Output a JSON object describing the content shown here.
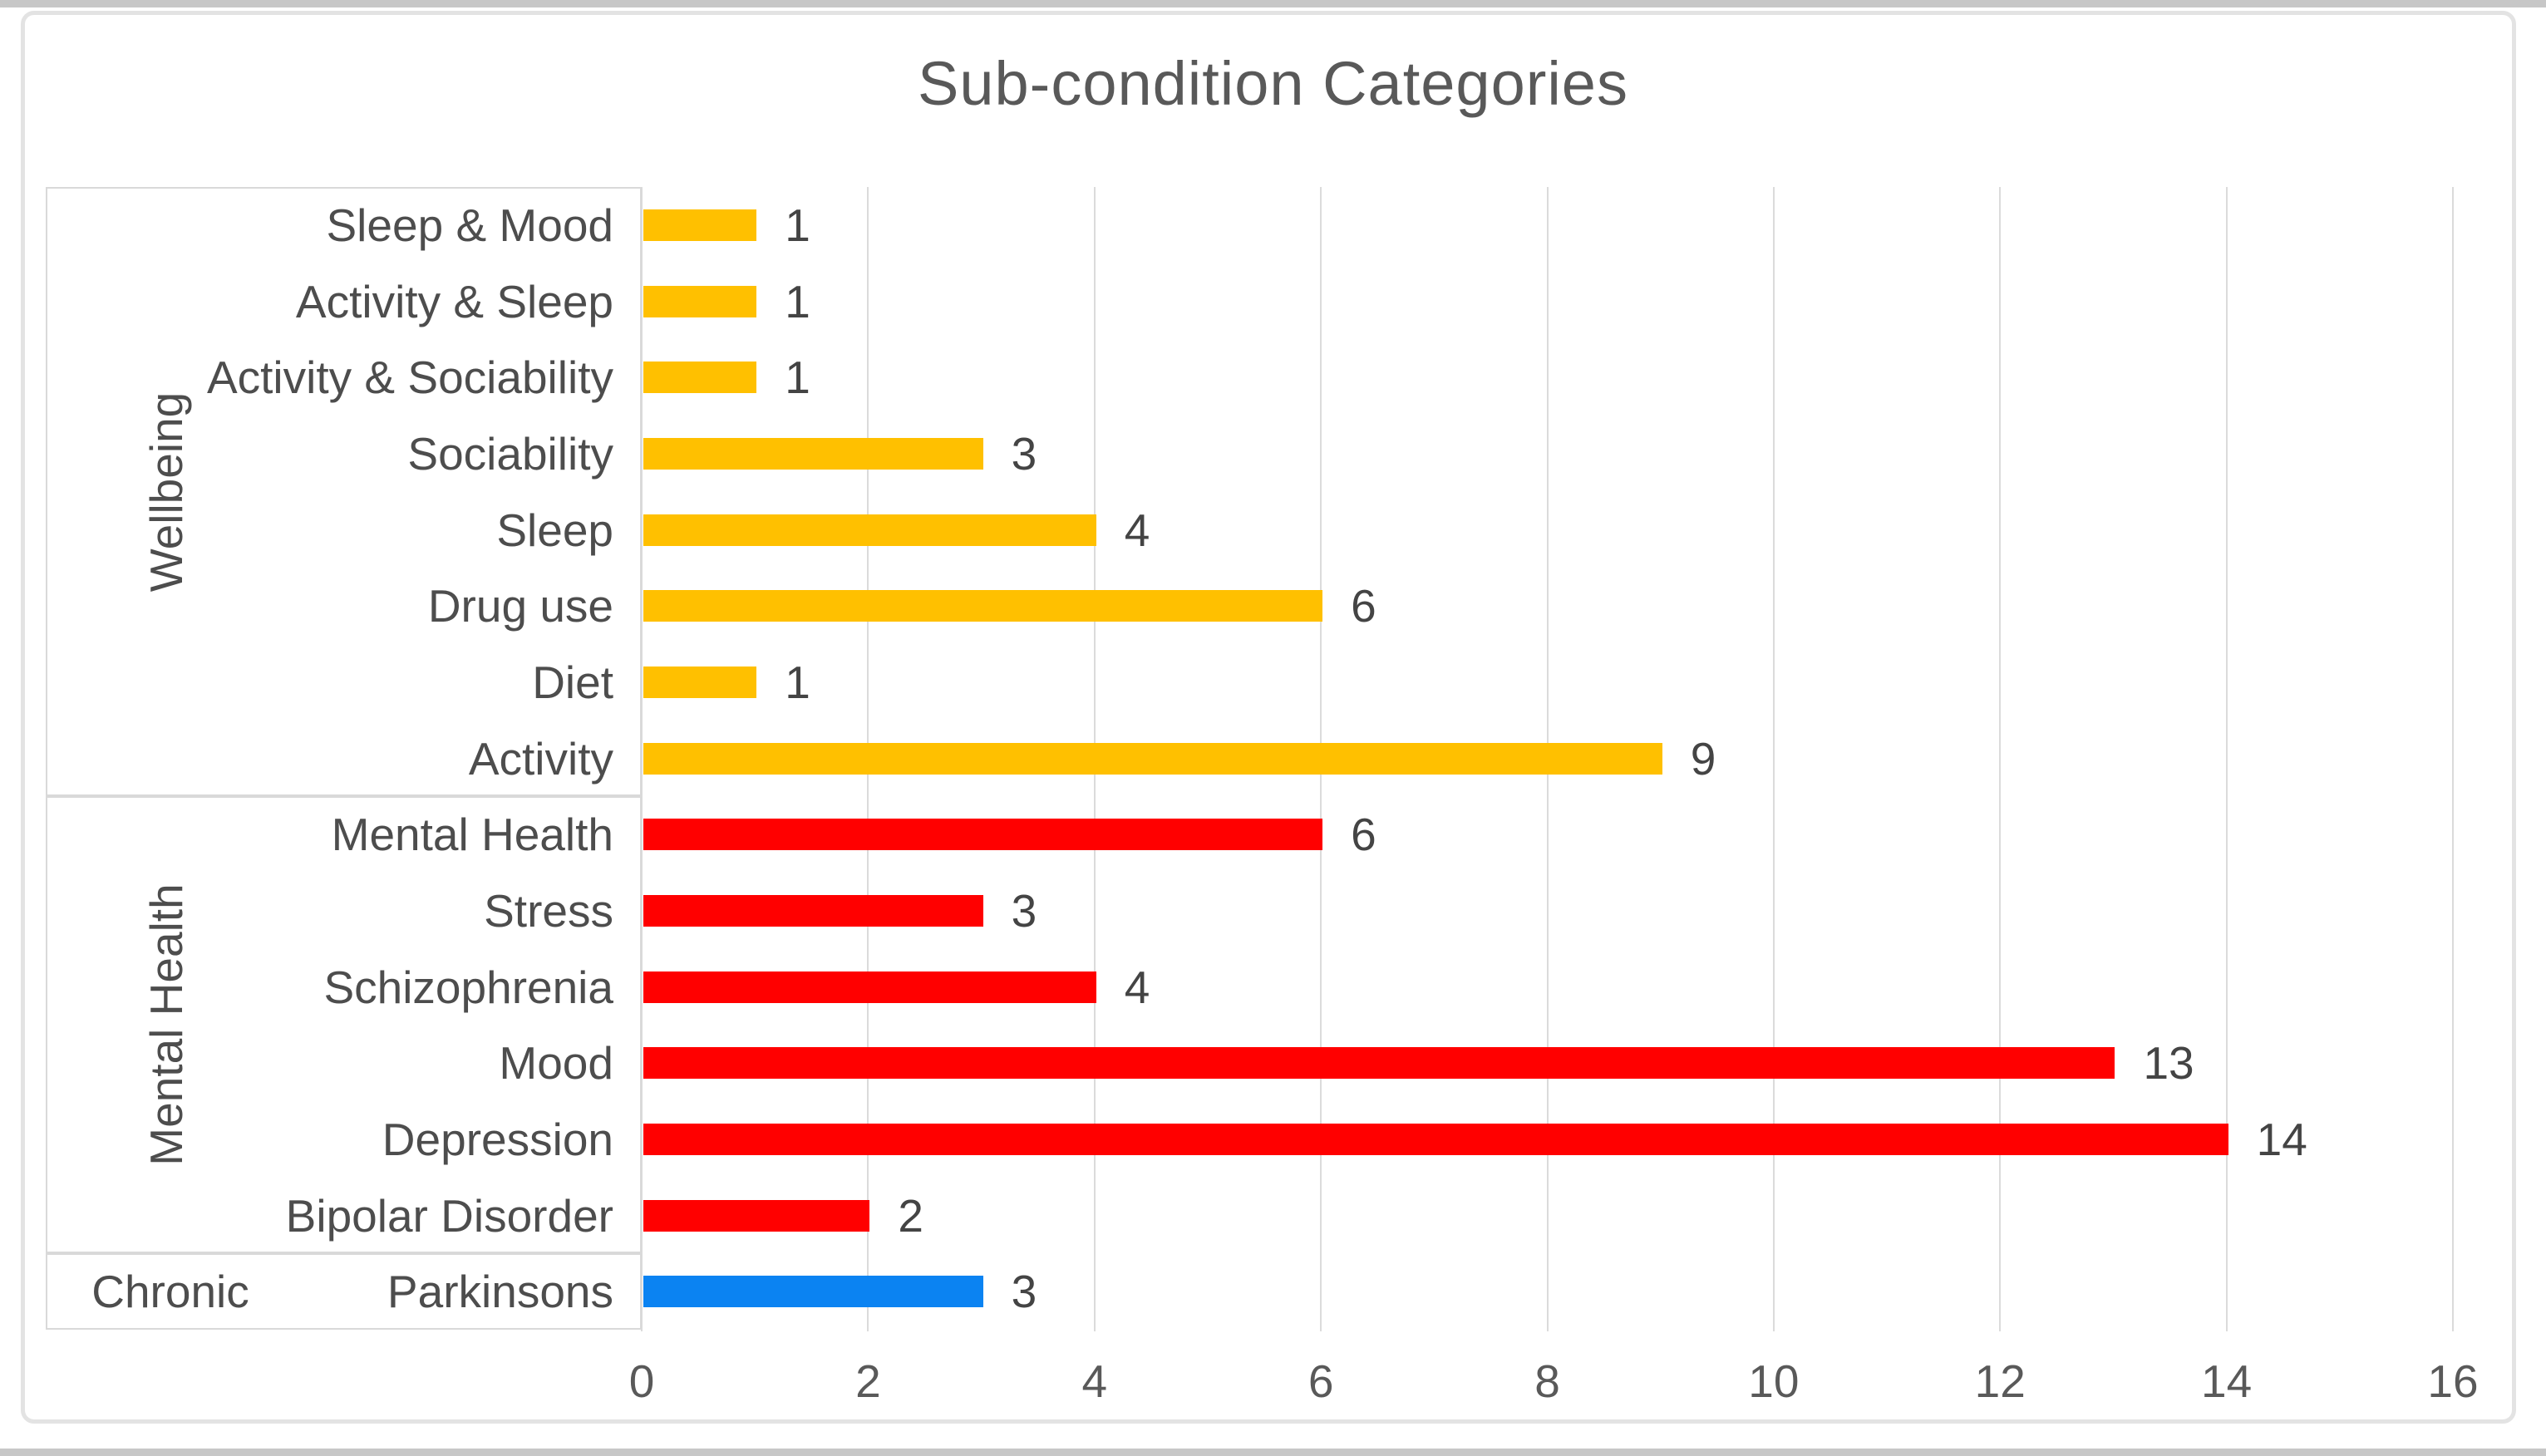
{
  "page": {
    "background": "#ffffff",
    "frame_border_color": "#e3e3e3",
    "edge_strip_color": "#c7c7c7"
  },
  "colors": {
    "wellbeing_bar": "#FFC000",
    "mental_health_bar": "#FF0000",
    "chronic_bar": "#0B83F2",
    "title_text": "#595959",
    "label_text": "#4d4d4d",
    "gridline": "#dbdbdb",
    "group_box_border": "#d9d9d9"
  },
  "chart_data": {
    "type": "bar",
    "orientation": "horizontal",
    "title": "Sub-condition Categories",
    "xlabel": "",
    "ylabel": "",
    "xlim": [
      0,
      16
    ],
    "x_ticks": [
      0,
      2,
      4,
      6,
      8,
      10,
      12,
      14,
      16
    ],
    "grid": true,
    "legend_position": "none",
    "data_labels": true,
    "categories": [
      "Sleep & Mood",
      "Activity & Sleep",
      "Activity & Sociability",
      "Sociability",
      "Sleep",
      "Drug use",
      "Diet",
      "Activity",
      "Mental Health",
      "Stress",
      "Schizophrenia",
      "Mood",
      "Depression",
      "Bipolar Disorder",
      "Parkinsons"
    ],
    "values": [
      1,
      1,
      1,
      3,
      4,
      6,
      1,
      9,
      6,
      3,
      4,
      13,
      14,
      2,
      3
    ],
    "groups": [
      {
        "label": "Wellbeing",
        "color": "#FFC000",
        "items": [
          {
            "label": "Sleep & Mood",
            "value": 1
          },
          {
            "label": "Activity & Sleep",
            "value": 1
          },
          {
            "label": "Activity & Sociability",
            "value": 1
          },
          {
            "label": "Sociability",
            "value": 3
          },
          {
            "label": "Sleep",
            "value": 4
          },
          {
            "label": "Drug use",
            "value": 6
          },
          {
            "label": "Diet",
            "value": 1
          },
          {
            "label": "Activity",
            "value": 9
          }
        ]
      },
      {
        "label": "Mental Health",
        "color": "#FF0000",
        "items": [
          {
            "label": "Mental Health",
            "value": 6
          },
          {
            "label": "Stress",
            "value": 3
          },
          {
            "label": "Schizophrenia",
            "value": 4
          },
          {
            "label": "Mood",
            "value": 13
          },
          {
            "label": "Depression",
            "value": 14
          },
          {
            "label": "Bipolar Disorder",
            "value": 2
          }
        ]
      },
      {
        "label": "Chronic",
        "color": "#0B83F2",
        "items": [
          {
            "label": "Parkinsons",
            "value": 3
          }
        ]
      }
    ]
  }
}
